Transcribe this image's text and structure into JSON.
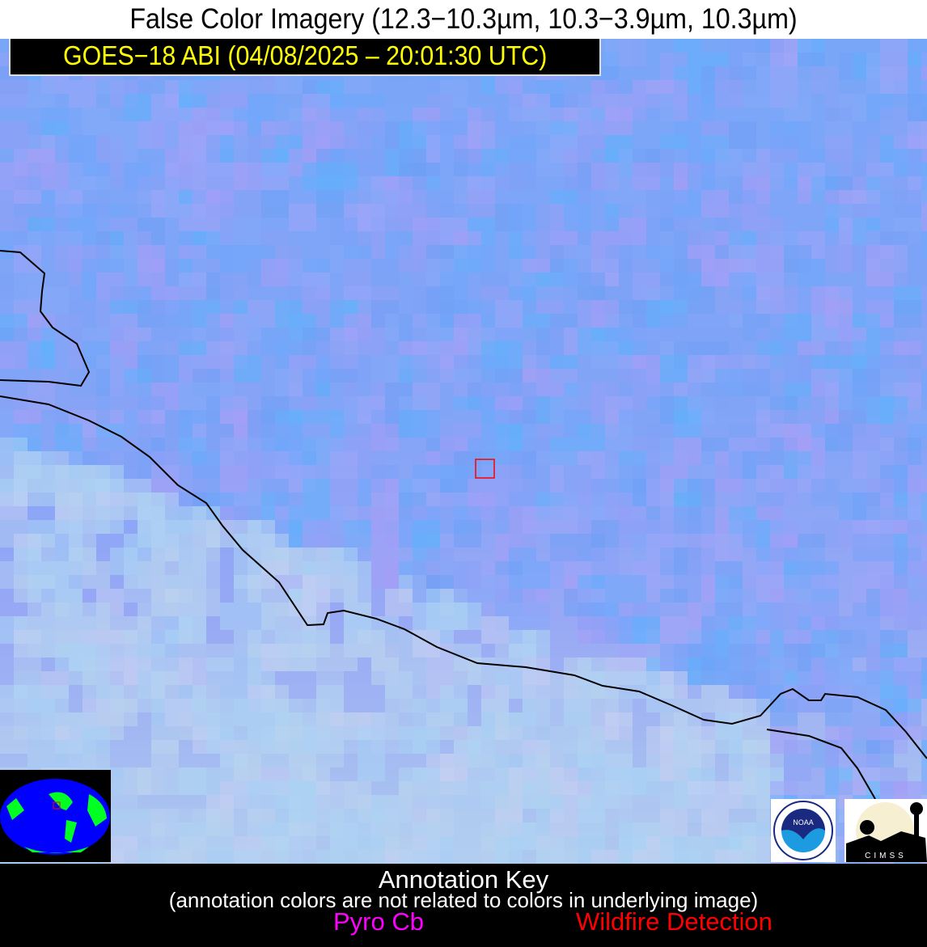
{
  "title": "False Color Imagery (12.3−10.3µm, 10.3−3.9µm, 10.3µm)",
  "satellite_label": "GOES−18 ABI (04/08/2025 – 20:01:30 UTC)",
  "annotation_key": {
    "title": "Annotation Key",
    "note": "(annotation colors are not related to colors in underlying image)",
    "items": [
      {
        "label": "Pyro Cb",
        "color": "#ff00ff"
      },
      {
        "label": "Wildfire Detection",
        "color": "#ff0000"
      }
    ]
  },
  "colors": {
    "coastline": "#000000",
    "detection_box": "#ff0000",
    "label_text": "#ffff00"
  },
  "logos": {
    "noaa": "NOAA",
    "cimss": "CIMSS"
  }
}
